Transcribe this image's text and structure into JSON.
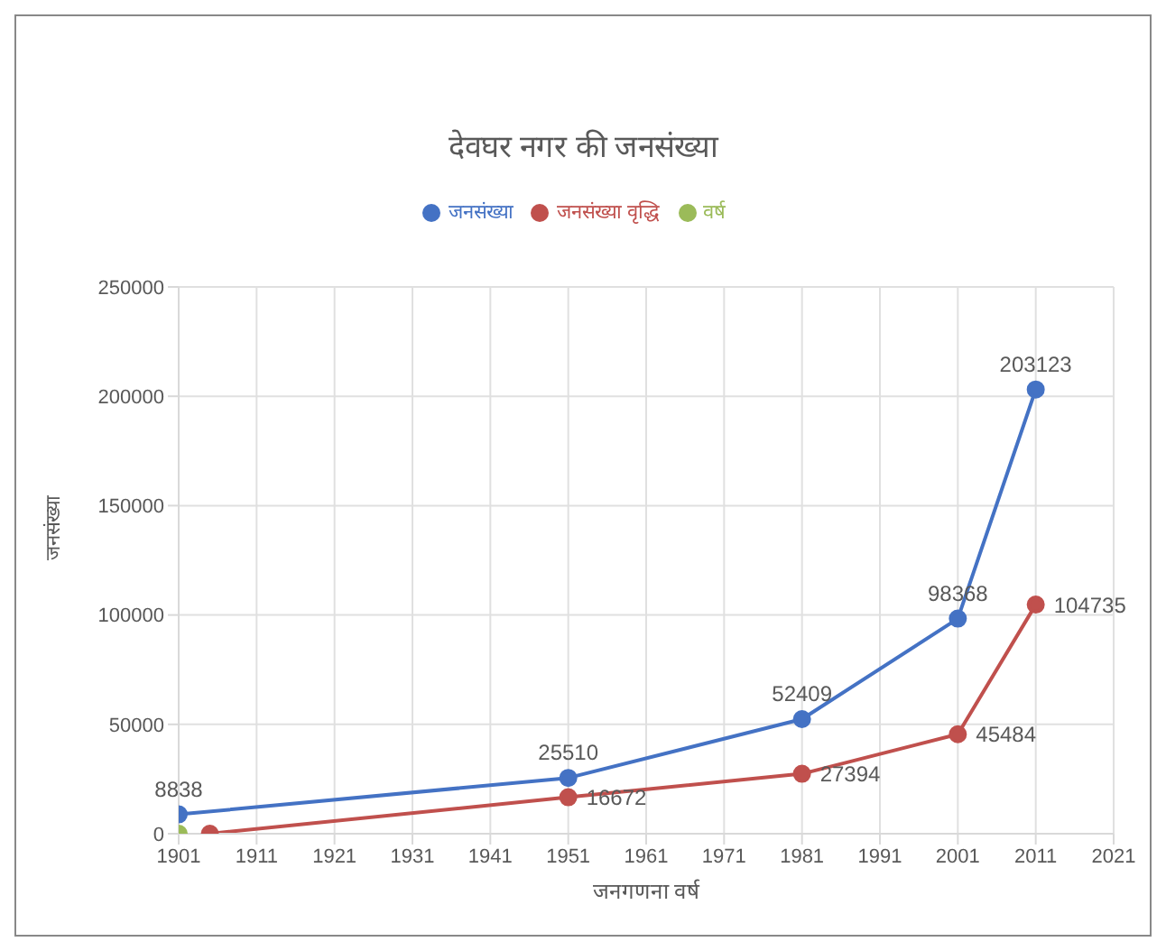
{
  "chart_data": {
    "type": "line",
    "title": "देवघर नगर की जनसंख्या",
    "xlabel": "जनगणना वर्ष",
    "ylabel": "जनसंख्या",
    "x": [
      1901,
      1951,
      1981,
      2001,
      2011
    ],
    "series": [
      {
        "name": "जनसंख्या",
        "color": "#4472c4",
        "values": [
          8838,
          25510,
          52409,
          98368,
          203123
        ],
        "value_labels": [
          "8838",
          "25510",
          "52409",
          "98368",
          "203123"
        ]
      },
      {
        "name": "जनसंख्या वृद्धि",
        "color": "#c0504d",
        "x": [
          1905,
          1951,
          1981,
          2001,
          2011
        ],
        "values": [
          0,
          16672,
          27394,
          45484,
          104735
        ],
        "value_labels": [
          null,
          "16672",
          "27394",
          "45484",
          "104735"
        ]
      },
      {
        "name": "वर्ष",
        "color": "#9bbb59",
        "x": [
          1901
        ],
        "values": [
          0
        ]
      }
    ],
    "xlim": [
      1901,
      2021
    ],
    "xticks": [
      1901,
      1911,
      1921,
      1931,
      1941,
      1951,
      1961,
      1971,
      1981,
      1991,
      2001,
      2011,
      2021
    ],
    "ylim": [
      0,
      250000
    ],
    "yticks": [
      0,
      50000,
      100000,
      150000,
      200000,
      250000
    ],
    "grid": true,
    "legend": "top",
    "marker": "circle",
    "line_style": "solid"
  }
}
